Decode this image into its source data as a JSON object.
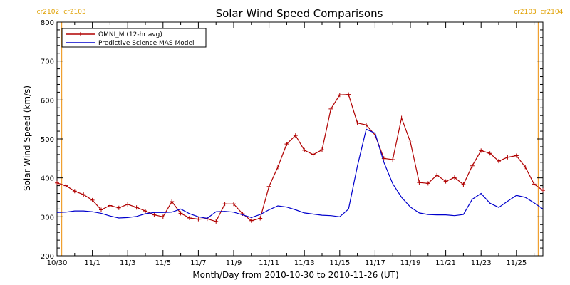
{
  "chart_data": {
    "type": "line",
    "title": "Solar Wind Speed Comparisons",
    "xlabel": "Month/Day from 2010-10-30 to 2010-11-26 (UT)",
    "ylabel": "Solar Wind Speed (km/s)",
    "xlim": [
      0,
      27.5
    ],
    "ylim": [
      200,
      800
    ],
    "grid": false,
    "legend_position": "top-left",
    "x_tick_labels": [
      "10/30",
      "11/1",
      "11/3",
      "11/5",
      "11/7",
      "11/9",
      "11/11",
      "11/13",
      "11/15",
      "11/17",
      "11/19",
      "11/21",
      "11/23",
      "11/25"
    ],
    "x_tick_days": [
      0,
      2,
      4,
      6,
      8,
      10,
      12,
      14,
      16,
      18,
      20,
      22,
      24,
      26
    ],
    "y_ticks": [
      200,
      300,
      400,
      500,
      600,
      700,
      800
    ],
    "x_units_note": "days from 2010-10-30",
    "carrington_rotation_labels": [
      {
        "x": 0.25,
        "left": "cr2102",
        "right": "cr2103"
      },
      {
        "x": 27.25,
        "left": "cr2103",
        "right": "cr2104"
      }
    ],
    "series": [
      {
        "name": "OMNI_M (12-hr avg)",
        "color": "#b00000",
        "markers": true,
        "x": [
          0.0,
          0.5,
          1.0,
          1.5,
          2.0,
          2.5,
          3.0,
          3.5,
          4.0,
          4.5,
          5.0,
          5.5,
          6.0,
          6.5,
          7.0,
          7.5,
          8.0,
          8.5,
          9.0,
          9.5,
          10.0,
          10.5,
          11.0,
          11.5,
          12.0,
          12.5,
          13.0,
          13.5,
          14.0,
          14.5,
          15.0,
          15.5,
          16.0,
          16.5,
          17.0,
          17.5,
          18.0,
          18.5,
          19.0,
          19.5,
          20.0,
          20.5,
          21.0,
          21.5,
          22.0,
          22.5,
          23.0,
          23.5,
          24.0,
          24.5,
          25.0,
          25.5,
          26.0,
          26.5,
          27.0,
          27.5
        ],
        "y": [
          387,
          380,
          366,
          357,
          343,
          318,
          329,
          323,
          332,
          324,
          315,
          305,
          300,
          339,
          309,
          297,
          294,
          295,
          288,
          333,
          333,
          308,
          290,
          296,
          378,
          428,
          487,
          509,
          471,
          460,
          472,
          577,
          613,
          614,
          541,
          536,
          510,
          450,
          447,
          554,
          492,
          388,
          386,
          407,
          391,
          401,
          383,
          431,
          470,
          463,
          443,
          453,
          457,
          428,
          384,
          368
        ]
      },
      {
        "name": "Predictive Science MAS Model",
        "color": "#0000cc",
        "markers": false,
        "x": [
          0.0,
          0.5,
          1.0,
          1.5,
          2.0,
          2.5,
          3.0,
          3.5,
          4.0,
          4.5,
          5.0,
          5.5,
          6.0,
          6.5,
          7.0,
          7.5,
          8.0,
          8.5,
          9.0,
          9.5,
          10.0,
          10.5,
          11.0,
          11.5,
          12.0,
          12.5,
          13.0,
          13.5,
          14.0,
          14.5,
          15.0,
          15.5,
          16.0,
          16.5,
          17.0,
          17.5,
          18.0,
          18.5,
          19.0,
          19.5,
          20.0,
          20.5,
          21.0,
          21.5,
          22.0,
          22.5,
          23.0,
          23.5,
          24.0,
          24.5,
          25.0,
          25.5,
          26.0,
          26.5,
          27.0,
          27.5
        ],
        "y": [
          311,
          312,
          315,
          315,
          313,
          309,
          302,
          297,
          298,
          301,
          308,
          311,
          311,
          312,
          320,
          308,
          300,
          296,
          313,
          314,
          312,
          305,
          298,
          306,
          318,
          328,
          325,
          318,
          310,
          307,
          304,
          303,
          300,
          320,
          430,
          525,
          515,
          440,
          385,
          350,
          325,
          310,
          306,
          305,
          305,
          303,
          306,
          345,
          360,
          335,
          324,
          340,
          355,
          350,
          336,
          320
        ]
      }
    ]
  }
}
